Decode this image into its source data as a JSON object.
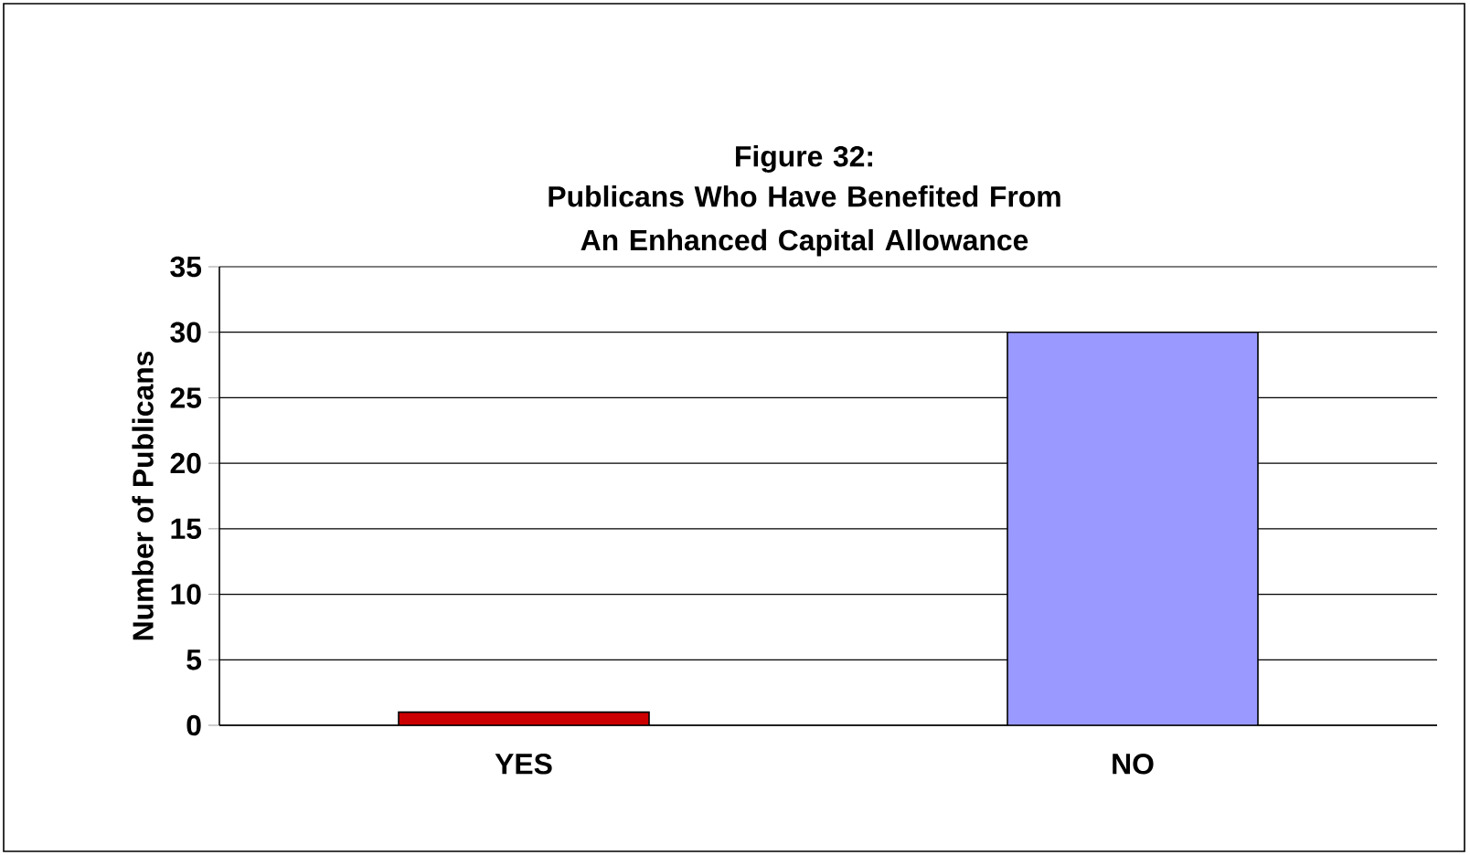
{
  "chart_data": {
    "type": "bar",
    "title": "Figure 32:",
    "subtitle": "Publicans Who Have Benefited From An Enhanced Capital Allowance",
    "ylabel": "Number of Publicans",
    "categories": [
      "YES",
      "NO"
    ],
    "values": [
      1,
      30
    ],
    "colors": [
      "#cc0000",
      "#9999ff"
    ],
    "ylim": [
      0,
      35
    ],
    "yticks": [
      0,
      5,
      10,
      15,
      20,
      25,
      30,
      35
    ],
    "grid": "y"
  }
}
